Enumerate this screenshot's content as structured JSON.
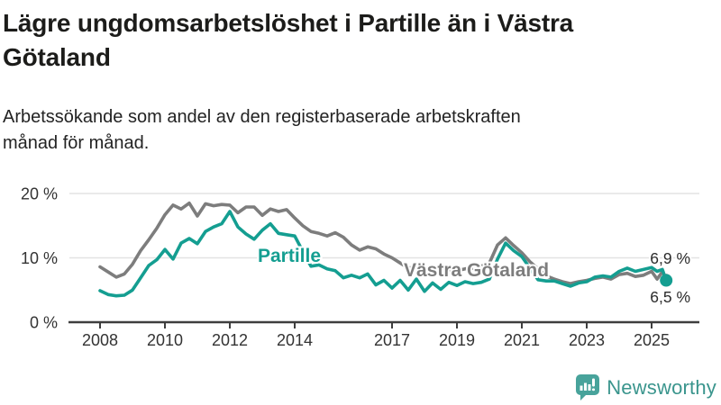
{
  "header": {
    "title": "Lägre ungdomsarbetslöshet i Partille än i Västra Götaland",
    "subtitle": "Arbetssökande som andel av den registerbaserade arbetskraften månad för månad."
  },
  "footer": {
    "brand_name": "Newsworthy",
    "logo_icon": "speech-bubble-bar-chart-icon"
  },
  "colors": {
    "partille_teal": "#149e91",
    "vastra_gotaland_gray": "#7d7d7d",
    "grid": "#e3e3e3",
    "axis": "#3e3e3e",
    "tick_label": "#333333",
    "end_label": "#2b2b2b",
    "title_text": "#1c1c1a",
    "brand_teal": "#3a958d"
  },
  "chart_data": {
    "type": "line",
    "title": "Lägre ungdomsarbetslöshet i Partille än i Västra Götaland",
    "subtitle": "Arbetssökande som andel av den registerbaserade arbetskraften månad för månad.",
    "xlabel": "",
    "ylabel": "",
    "ylim": [
      0,
      21.5
    ],
    "xlim": [
      2007,
      2026.5
    ],
    "grid": "horizontal gridlines at 10 % and 20 %, dark baseline at 0 %",
    "legend_position": "inline labels on lines; end-value labels at right",
    "x_unit": "decimal year (monthly series)",
    "x": [
      2008.0,
      2008.25,
      2008.5,
      2008.75,
      2009.0,
      2009.25,
      2009.5,
      2009.75,
      2010.0,
      2010.25,
      2010.5,
      2010.75,
      2011.0,
      2011.25,
      2011.5,
      2011.75,
      2012.0,
      2012.25,
      2012.5,
      2012.75,
      2013.0,
      2013.25,
      2013.5,
      2013.75,
      2014.0,
      2014.25,
      2014.5,
      2014.75,
      2015.0,
      2015.25,
      2015.5,
      2015.75,
      2016.0,
      2016.25,
      2016.5,
      2016.75,
      2017.0,
      2017.25,
      2017.5,
      2017.75,
      2018.0,
      2018.25,
      2018.5,
      2018.75,
      2019.0,
      2019.25,
      2019.5,
      2019.75,
      2020.0,
      2020.25,
      2020.5,
      2020.75,
      2021.0,
      2021.25,
      2021.5,
      2021.75,
      2022.0,
      2022.25,
      2022.5,
      2022.75,
      2023.0,
      2023.25,
      2023.5,
      2023.75,
      2024.0,
      2024.25,
      2024.5,
      2024.75,
      2025.0,
      2025.17,
      2025.33,
      2025.45
    ],
    "series": [
      {
        "name": "Västra Götaland",
        "color": "#7d7d7d",
        "end_label": "6,9 %",
        "end_value": 6.9,
        "values": [
          8.6,
          7.8,
          7.0,
          7.5,
          9.0,
          11.1,
          12.8,
          14.6,
          16.7,
          18.2,
          17.6,
          18.5,
          16.5,
          18.4,
          18.1,
          18.3,
          18.2,
          17.0,
          17.9,
          17.9,
          16.6,
          17.6,
          17.2,
          17.5,
          16.2,
          15.0,
          14.1,
          13.8,
          13.4,
          13.9,
          13.2,
          12.0,
          11.2,
          11.7,
          11.4,
          10.6,
          10.0,
          9.2,
          8.4,
          8.6,
          8.1,
          8.3,
          7.9,
          8.2,
          8.0,
          8.3,
          8.4,
          8.7,
          9.2,
          12.0,
          13.1,
          11.9,
          10.8,
          9.4,
          8.3,
          7.2,
          6.7,
          6.3,
          6.0,
          6.3,
          6.5,
          6.8,
          7.0,
          6.7,
          7.4,
          7.6,
          7.1,
          7.3,
          7.9,
          6.7,
          7.8,
          6.9
        ]
      },
      {
        "name": "Partille",
        "color": "#149e91",
        "end_label": "6,5 %",
        "end_value": 6.5,
        "values": [
          4.9,
          4.3,
          4.1,
          4.2,
          5.0,
          6.9,
          8.8,
          9.7,
          11.3,
          9.8,
          12.3,
          13.0,
          12.2,
          14.1,
          14.8,
          15.3,
          17.2,
          14.8,
          13.7,
          12.9,
          14.3,
          15.3,
          13.8,
          13.6,
          13.4,
          11.0,
          8.7,
          8.9,
          8.3,
          8.0,
          6.9,
          7.3,
          6.9,
          7.5,
          5.8,
          6.5,
          5.3,
          6.5,
          5.0,
          6.7,
          4.8,
          6.1,
          5.1,
          6.2,
          5.7,
          6.3,
          6.0,
          6.2,
          6.7,
          9.8,
          12.3,
          11.1,
          10.2,
          8.4,
          6.6,
          6.4,
          6.4,
          6.0,
          5.6,
          6.1,
          6.3,
          7.0,
          7.2,
          7.0,
          7.9,
          8.4,
          7.9,
          8.2,
          8.5,
          7.9,
          8.2,
          6.5
        ]
      }
    ],
    "yticks": [
      {
        "v": 0,
        "label": "0 %"
      },
      {
        "v": 10,
        "label": "10 %"
      },
      {
        "v": 20,
        "label": "20 %"
      }
    ],
    "xticks": [
      {
        "v": 2008,
        "label": "2008"
      },
      {
        "v": 2010,
        "label": "2010"
      },
      {
        "v": 2012,
        "label": "2012"
      },
      {
        "v": 2014,
        "label": "2014"
      },
      {
        "v": 2017,
        "label": "2017"
      },
      {
        "v": 2019,
        "label": "2019"
      },
      {
        "v": 2021,
        "label": "2021"
      },
      {
        "v": 2023,
        "label": "2023"
      },
      {
        "v": 2025,
        "label": "2025"
      }
    ]
  }
}
